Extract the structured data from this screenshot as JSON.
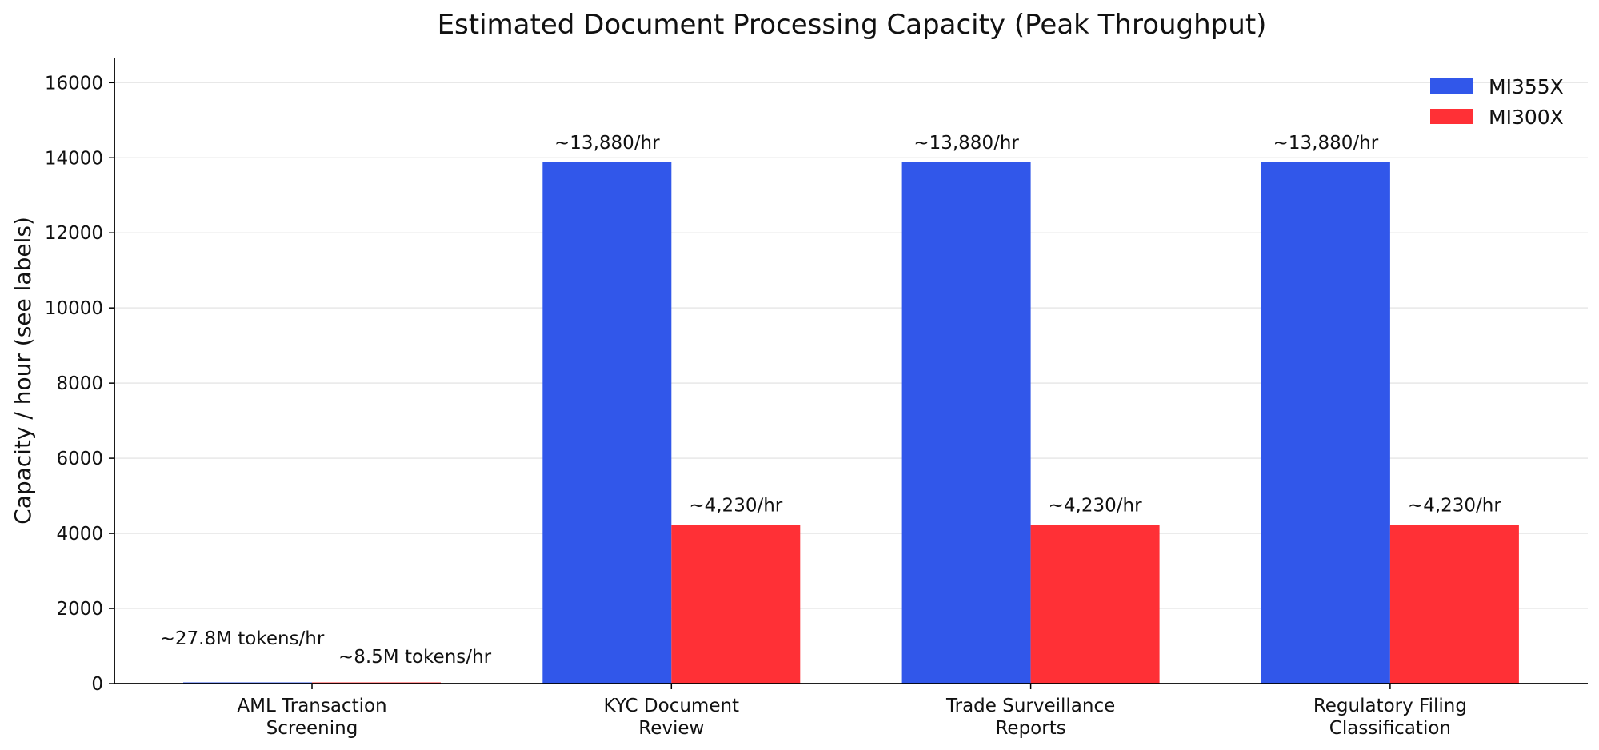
{
  "chart_data": {
    "type": "bar",
    "title": "Estimated Document Processing Capacity (Peak Throughput)",
    "xlabel": "",
    "ylabel": "Capacity / hour (see labels)",
    "ylim": [
      0,
      16666
    ],
    "yticks": [
      0,
      2000,
      4000,
      6000,
      8000,
      10000,
      12000,
      14000,
      16000
    ],
    "grid": "horizontal",
    "legend_position": "top-right",
    "categories": [
      [
        "AML Transaction",
        "Screening"
      ],
      [
        "KYC Document",
        "Review"
      ],
      [
        "Trade Surveillance",
        "Reports"
      ],
      [
        "Regulatory Filing",
        "Classification"
      ]
    ],
    "series": [
      {
        "name": "MI355X",
        "color": "#3157EA",
        "values": [
          27.8,
          13880,
          13880,
          13880
        ],
        "labels": [
          "~27.8M tokens/hr",
          "~13,880/hr",
          "~13,880/hr",
          "~13,880/hr"
        ]
      },
      {
        "name": "MI300X",
        "color": "#FF3036",
        "values": [
          8.5,
          4230,
          4230,
          4230
        ],
        "labels": [
          "~8.5M tokens/hr",
          "~4,230/hr",
          "~4,230/hr",
          "~4,230/hr"
        ]
      }
    ]
  }
}
